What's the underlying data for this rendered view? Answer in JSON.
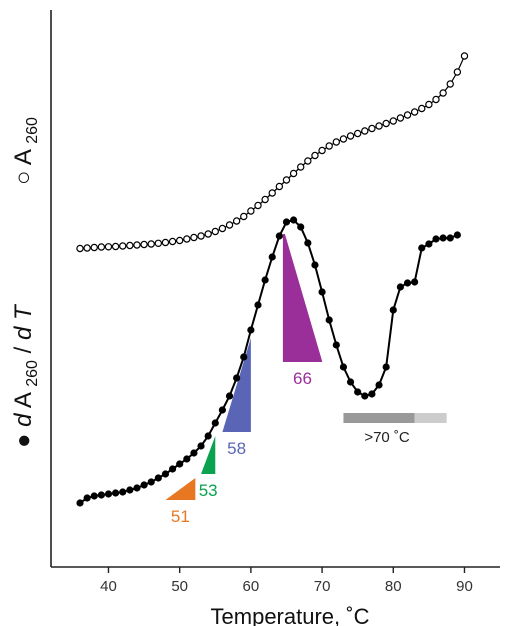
{
  "chart_data": {
    "type": "line",
    "xlabel": "Temperature, ˚C",
    "xlim": [
      31,
      96
    ],
    "xticks": [
      40,
      50,
      60,
      70,
      80,
      90
    ],
    "ylabels": {
      "top": {
        "marker": "○",
        "main": "A",
        "sub": "260"
      },
      "bottom": {
        "marker": "●",
        "italic_d": "d",
        "main": "A",
        "sub": "260",
        "slash": " / ",
        "italic_d2": "d",
        "tail": "T"
      }
    },
    "series": [
      {
        "marker": "open-circle",
        "x": [
          36,
          37,
          38,
          39,
          40,
          41,
          42,
          43,
          44,
          45,
          46,
          47,
          48,
          49,
          50,
          51,
          52,
          53,
          54,
          55,
          56,
          57,
          58,
          59,
          60,
          61,
          62,
          63,
          64,
          65,
          66,
          67,
          68,
          69,
          70,
          71,
          72,
          73,
          74,
          75,
          76,
          77,
          78,
          79,
          80,
          81,
          82,
          83,
          84,
          85,
          86,
          87,
          88,
          89,
          90
        ],
        "y": [
          248.5,
          248,
          247.5,
          247,
          246.8,
          246.5,
          246,
          245.5,
          245,
          244.5,
          244,
          243.3,
          242.5,
          241.5,
          240.5,
          239,
          237.5,
          236,
          234,
          231.5,
          228.5,
          225,
          221,
          216.5,
          211,
          205.5,
          199.5,
          193,
          186.5,
          180,
          173.5,
          167,
          161,
          155.5,
          150.5,
          146,
          142,
          139,
          136,
          133.5,
          131,
          128.5,
          126,
          123.5,
          121,
          118,
          115,
          112,
          108.5,
          104.5,
          99.5,
          93,
          84,
          72,
          56
        ]
      },
      {
        "marker": "filled-circle",
        "x": [
          36,
          37,
          38,
          39,
          40,
          41,
          42,
          43,
          44,
          45,
          46,
          47,
          48,
          49,
          50,
          51,
          52,
          53,
          54,
          55,
          56,
          57,
          58,
          59,
          60,
          61,
          62,
          63,
          64,
          65,
          66,
          67,
          68,
          69,
          70,
          71,
          72,
          73,
          74,
          75,
          76,
          77,
          78,
          79,
          80,
          81,
          82,
          83,
          84,
          85,
          86,
          87,
          88,
          89
        ],
        "y": [
          503,
          498,
          496,
          495,
          494,
          493,
          492,
          490,
          488,
          485,
          482,
          478,
          474,
          469,
          464,
          459,
          453,
          446,
          436,
          423,
          410,
          396,
          378,
          357,
          330,
          305,
          280,
          257,
          236,
          222,
          220,
          227,
          243,
          265,
          292,
          320,
          345,
          367,
          382,
          392,
          396,
          394,
          385,
          367,
          310,
          287,
          283,
          282,
          248,
          244,
          239,
          238,
          238,
          235
        ]
      }
    ],
    "annotations": [
      {
        "label": "51",
        "color": "#e87722",
        "x0": 48,
        "x1": 52.2,
        "shape": "triangle"
      },
      {
        "label": "53",
        "color": "#0aa14f",
        "x0": 53,
        "x1": 55,
        "shape": "triangle"
      },
      {
        "label": "58",
        "color": "#5a66b5",
        "x0": 56,
        "x1": 60,
        "shape": "triangle"
      },
      {
        "label": "66",
        "color": "#9a2f99",
        "x0": 64.5,
        "x1": 70,
        "shape": "quad"
      }
    ],
    "range_marker": {
      "label": ">70 ˚C",
      "x0": 73,
      "x1": 87.5,
      "split": 83,
      "dark": "#999999",
      "light": "#cccccc"
    }
  }
}
